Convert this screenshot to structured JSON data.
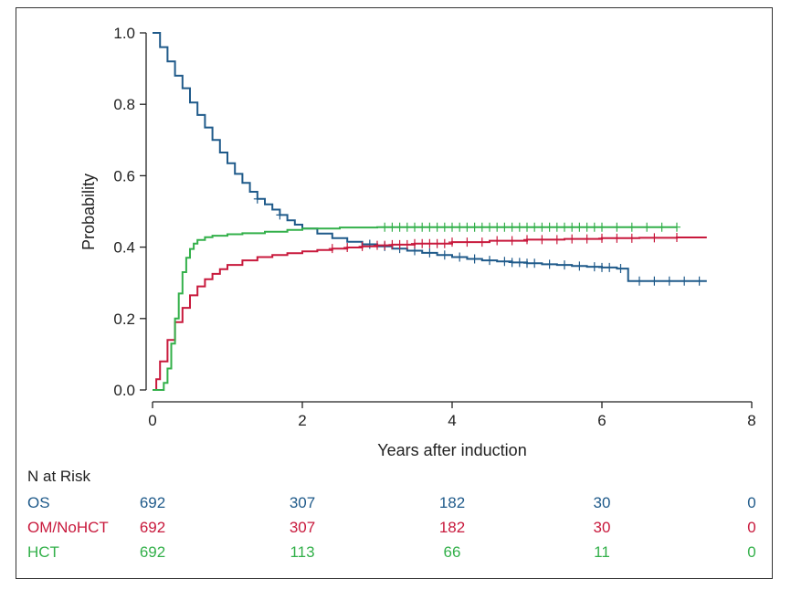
{
  "chart_data": {
    "type": "line",
    "title": "",
    "xlabel": "Years after induction",
    "ylabel": "Probability",
    "xlim": [
      0,
      8
    ],
    "ylim": [
      0,
      1
    ],
    "x_ticks": [
      "0",
      "2",
      "4",
      "6",
      "8"
    ],
    "y_ticks": [
      "0.0",
      "0.2",
      "0.4",
      "0.6",
      "0.8",
      "1.0"
    ],
    "grid": false,
    "series": [
      {
        "name": "OS",
        "color": "#1f5a8a",
        "step": true,
        "x": [
          0,
          0.1,
          0.2,
          0.3,
          0.4,
          0.5,
          0.6,
          0.7,
          0.8,
          0.9,
          1.0,
          1.1,
          1.2,
          1.3,
          1.4,
          1.5,
          1.6,
          1.7,
          1.8,
          1.9,
          2.0,
          2.2,
          2.4,
          2.6,
          2.8,
          3.0,
          3.2,
          3.4,
          3.6,
          3.8,
          4.0,
          4.2,
          4.4,
          4.6,
          4.8,
          5.0,
          5.2,
          5.4,
          5.6,
          5.8,
          6.0,
          6.2,
          6.3,
          6.35,
          6.6,
          7.0,
          7.4
        ],
        "y": [
          1.0,
          0.96,
          0.92,
          0.88,
          0.845,
          0.805,
          0.77,
          0.735,
          0.7,
          0.665,
          0.635,
          0.605,
          0.58,
          0.555,
          0.535,
          0.52,
          0.505,
          0.49,
          0.475,
          0.463,
          0.452,
          0.438,
          0.425,
          0.415,
          0.408,
          0.402,
          0.396,
          0.39,
          0.384,
          0.378,
          0.372,
          0.367,
          0.363,
          0.36,
          0.357,
          0.355,
          0.352,
          0.35,
          0.347,
          0.345,
          0.343,
          0.34,
          0.34,
          0.305,
          0.305,
          0.305,
          0.305
        ],
        "censor_x": [
          1.4,
          1.7,
          2.9,
          3.1,
          3.3,
          3.5,
          3.7,
          3.9,
          4.1,
          4.3,
          4.5,
          4.7,
          4.8,
          4.9,
          5.0,
          5.1,
          5.3,
          5.5,
          5.7,
          5.9,
          6.0,
          6.1,
          6.25,
          6.5,
          6.7,
          6.9,
          7.1,
          7.3
        ]
      },
      {
        "name": "OM/NoHCT",
        "color": "#c8193c",
        "step": true,
        "x": [
          0,
          0.05,
          0.1,
          0.2,
          0.3,
          0.4,
          0.5,
          0.6,
          0.7,
          0.8,
          0.9,
          1.0,
          1.2,
          1.4,
          1.6,
          1.8,
          2.0,
          2.2,
          2.4,
          2.6,
          2.8,
          3.0,
          3.2,
          3.5,
          4.0,
          4.5,
          5.0,
          5.5,
          6.0,
          6.5,
          7.0,
          7.4
        ],
        "y": [
          0,
          0.03,
          0.08,
          0.14,
          0.19,
          0.23,
          0.265,
          0.29,
          0.31,
          0.325,
          0.338,
          0.35,
          0.363,
          0.372,
          0.378,
          0.383,
          0.388,
          0.392,
          0.396,
          0.399,
          0.402,
          0.405,
          0.407,
          0.41,
          0.414,
          0.418,
          0.421,
          0.423,
          0.425,
          0.426,
          0.427,
          0.427
        ],
        "censor_x": [
          2.4,
          2.6,
          2.8,
          3.0,
          3.1,
          3.2,
          3.3,
          3.4,
          3.5,
          3.6,
          3.7,
          3.8,
          3.9,
          4.0,
          4.2,
          4.4,
          4.6,
          4.8,
          5.0,
          5.2,
          5.4,
          5.6,
          5.8,
          6.0,
          6.2,
          6.4,
          6.7,
          7.0
        ]
      },
      {
        "name": "HCT",
        "color": "#33b04a",
        "step": true,
        "x": [
          0,
          0.1,
          0.15,
          0.2,
          0.25,
          0.3,
          0.35,
          0.4,
          0.45,
          0.5,
          0.55,
          0.6,
          0.7,
          0.8,
          1.0,
          1.2,
          1.5,
          1.8,
          2.0,
          2.5,
          3.0,
          4.0,
          5.0,
          6.0,
          7.0
        ],
        "y": [
          0,
          0,
          0.02,
          0.06,
          0.13,
          0.2,
          0.27,
          0.33,
          0.37,
          0.395,
          0.41,
          0.42,
          0.428,
          0.432,
          0.436,
          0.439,
          0.443,
          0.448,
          0.452,
          0.455,
          0.456,
          0.456,
          0.456,
          0.456,
          0.456
        ],
        "censor_x": [
          3.1,
          3.2,
          3.3,
          3.4,
          3.5,
          3.6,
          3.7,
          3.8,
          3.9,
          4.0,
          4.1,
          4.2,
          4.3,
          4.4,
          4.5,
          4.6,
          4.7,
          4.8,
          4.9,
          5.0,
          5.1,
          5.2,
          5.3,
          5.4,
          5.5,
          5.6,
          5.7,
          5.8,
          5.9,
          6.0,
          6.2,
          6.4,
          6.6,
          6.8,
          7.0
        ]
      }
    ]
  },
  "risk_table": {
    "title": "N at Risk",
    "rows": [
      {
        "label": "OS",
        "color": "#1f5a8a",
        "values": [
          "692",
          "307",
          "182",
          "30",
          "0"
        ]
      },
      {
        "label": "OM/NoHCT",
        "color": "#c8193c",
        "values": [
          "692",
          "307",
          "182",
          "30",
          "0"
        ]
      },
      {
        "label": "HCT",
        "color": "#33b04a",
        "values": [
          "692",
          "113",
          "66",
          "11",
          "0"
        ]
      }
    ]
  }
}
